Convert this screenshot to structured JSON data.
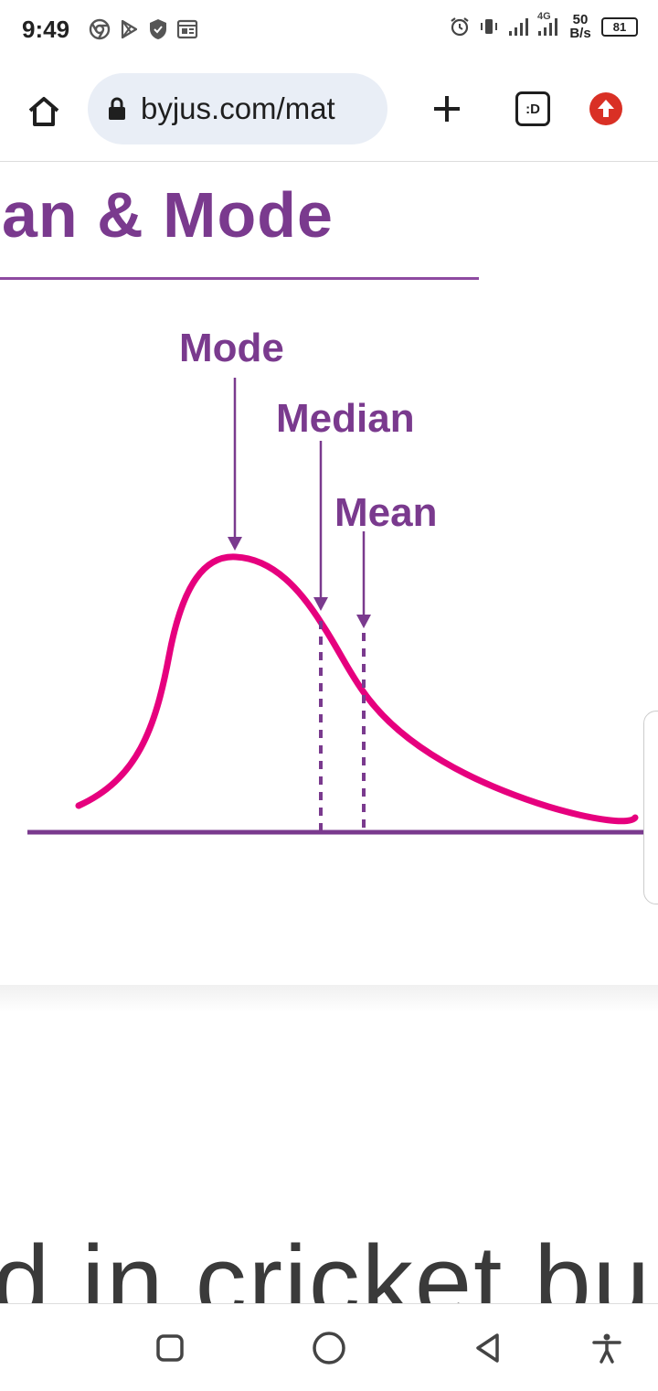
{
  "status_bar": {
    "time": "9:49",
    "left_icons": [
      "chrome-icon",
      "play-store-icon",
      "shield-icon",
      "news-icon"
    ],
    "right_icons": [
      "alarm-icon",
      "vibrate-icon",
      "signal-icon",
      "signal-4g-icon"
    ],
    "network_label": "4G",
    "speed_value": "50",
    "speed_unit": "B/s",
    "battery": "81"
  },
  "browser": {
    "url": "byjus.com/mat",
    "tab_label": ":D",
    "icons": [
      "home-icon",
      "lock-icon",
      "plus-icon",
      "tab-switcher-icon",
      "update-icon"
    ]
  },
  "page": {
    "heading_partial": "an & Mode",
    "bottom_text": "d in cricket bu",
    "colors": {
      "heading": "#7a3a8e",
      "curve": "#e6007e",
      "axis": "#7a3a8e"
    }
  },
  "figure": {
    "labels": {
      "mode": "Mode",
      "median": "Median",
      "mean": "Mean"
    }
  },
  "nav_bar": {
    "icons": [
      "recents-icon",
      "home-circle-icon",
      "back-icon",
      "accessibility-icon"
    ]
  }
}
